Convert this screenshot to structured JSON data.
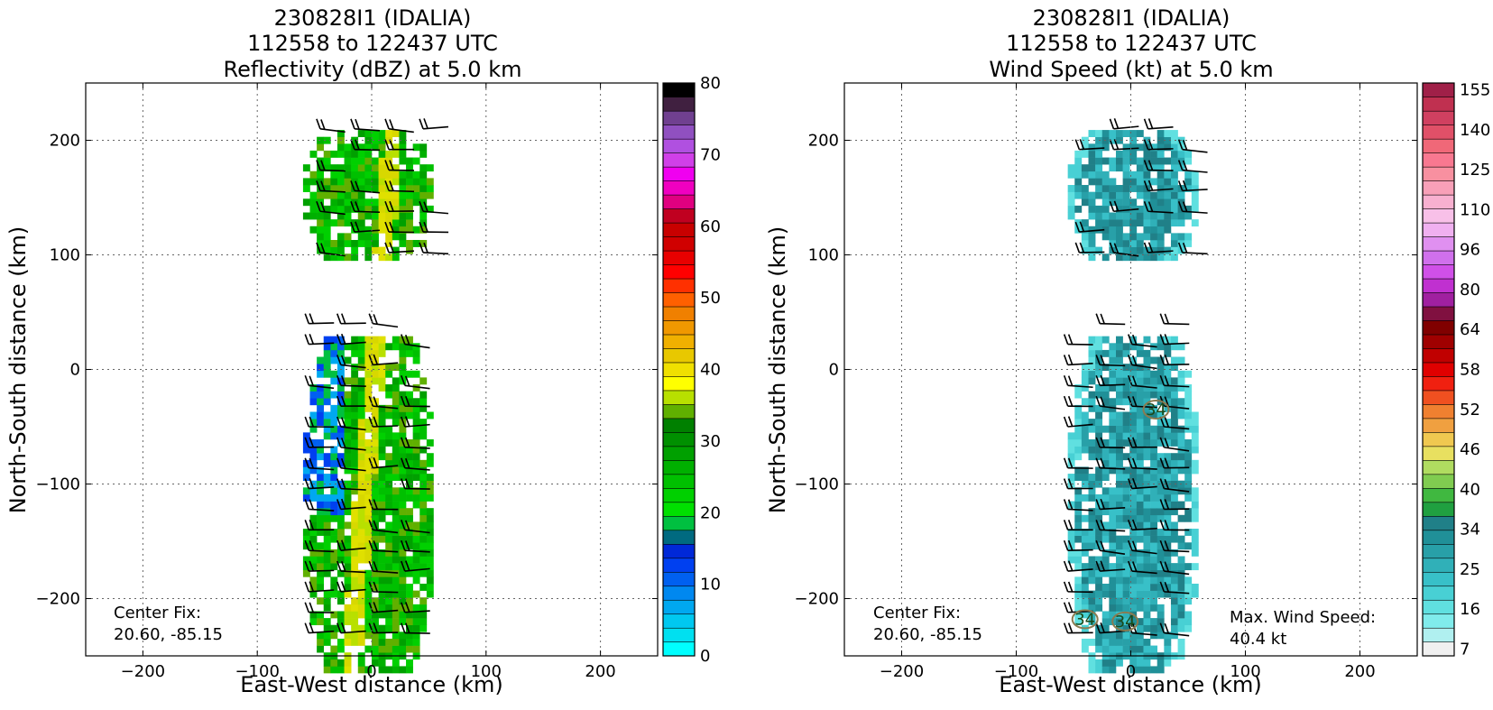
{
  "chart_data": [
    {
      "type": "heatmap",
      "title_lines": [
        "230828I1 (IDALIA)",
        "112558 to 122437 UTC",
        "Reflectivity (dBZ) at 5.0 km"
      ],
      "xlabel": "East-West distance (km)",
      "ylabel": "North-South distance (km)",
      "xlim": [
        -250,
        250
      ],
      "ylim": [
        -250,
        250
      ],
      "xticks": [
        -200,
        -100,
        0,
        100,
        200
      ],
      "yticks": [
        -200,
        -100,
        0,
        100,
        200
      ],
      "grid": true,
      "annotations": [
        "Center Fix:",
        "20.60, -85.15"
      ],
      "colorbar": {
        "min": 0,
        "max": 80,
        "tick_values": [
          0,
          10,
          20,
          30,
          40,
          50,
          60,
          70,
          80
        ],
        "colors": [
          "#00ffff",
          "#00e0f0",
          "#00c8f0",
          "#00a8f0",
          "#0088f0",
          "#0060f0",
          "#0040f0",
          "#0028d8",
          "#006a80",
          "#00c040",
          "#00e000",
          "#00d000",
          "#00c000",
          "#00b000",
          "#00a000",
          "#009000",
          "#008000",
          "#60b000",
          "#b8e000",
          "#ffff00",
          "#f0e000",
          "#e8c800",
          "#f0b000",
          "#f09800",
          "#f08000",
          "#ff6000",
          "#ff3000",
          "#ff0000",
          "#e80000",
          "#d00000",
          "#c80000",
          "#c00020",
          "#e00080",
          "#f000c0",
          "#f000f0",
          "#d040e8",
          "#b050e0",
          "#9050c0",
          "#704090",
          "#402040",
          "#000000"
        ]
      },
      "series": [
        {
          "name": "echo-north",
          "center_x": -5,
          "center_y": 150,
          "half_width_x": 55,
          "half_height_y": 55
        },
        {
          "name": "echo-south",
          "center_x": -5,
          "center_y": -120,
          "half_width_x": 55,
          "half_height_y": 145
        }
      ]
    },
    {
      "type": "heatmap",
      "title_lines": [
        "230828I1 (IDALIA)",
        "112558 to 122437 UTC",
        "Wind Speed (kt) at 5.0 km"
      ],
      "xlabel": "East-West distance (km)",
      "ylabel": "North-South distance (km)",
      "xlim": [
        -250,
        250
      ],
      "ylim": [
        -250,
        250
      ],
      "xticks": [
        -200,
        -100,
        0,
        100,
        200
      ],
      "yticks": [
        -200,
        -100,
        0,
        100,
        200
      ],
      "grid": true,
      "annotations": [
        "Center Fix:",
        "20.60, -85.15",
        "Max. Wind Speed:",
        "40.4 kt"
      ],
      "contour_labels": [
        "34",
        "34",
        "34"
      ],
      "colorbar": {
        "tick_labels": [
          "7",
          "16",
          "25",
          "34",
          "40",
          "46",
          "52",
          "58",
          "64",
          "80",
          "96",
          "110",
          "125",
          "140",
          "155"
        ],
        "colors": [
          "#f0f0f0",
          "#b0f0f0",
          "#80ecec",
          "#60e0e0",
          "#48d0d4",
          "#38c0c8",
          "#30b0b8",
          "#28a0a8",
          "#209098",
          "#208088",
          "#20a040",
          "#40b840",
          "#80cc50",
          "#b0dc60",
          "#e8e060",
          "#f0c850",
          "#f0a040",
          "#f08030",
          "#f05020",
          "#f02010",
          "#e00000",
          "#c00000",
          "#a00000",
          "#800000",
          "#801040",
          "#a020a0",
          "#c030d0",
          "#d050e8",
          "#d070ec",
          "#e090f0",
          "#f0b0f0",
          "#f8c0e8",
          "#f8b0d0",
          "#f8a0b8",
          "#f890a0",
          "#f87890",
          "#f06878",
          "#e05068",
          "#d04060",
          "#c03050",
          "#a02048"
        ]
      },
      "series": [
        {
          "name": "wind-north",
          "center_x": 0,
          "center_y": 150,
          "half_width_x": 55,
          "half_height_y": 55
        },
        {
          "name": "wind-south",
          "center_x": 0,
          "center_y": -120,
          "half_width_x": 55,
          "half_height_y": 145
        }
      ]
    }
  ]
}
